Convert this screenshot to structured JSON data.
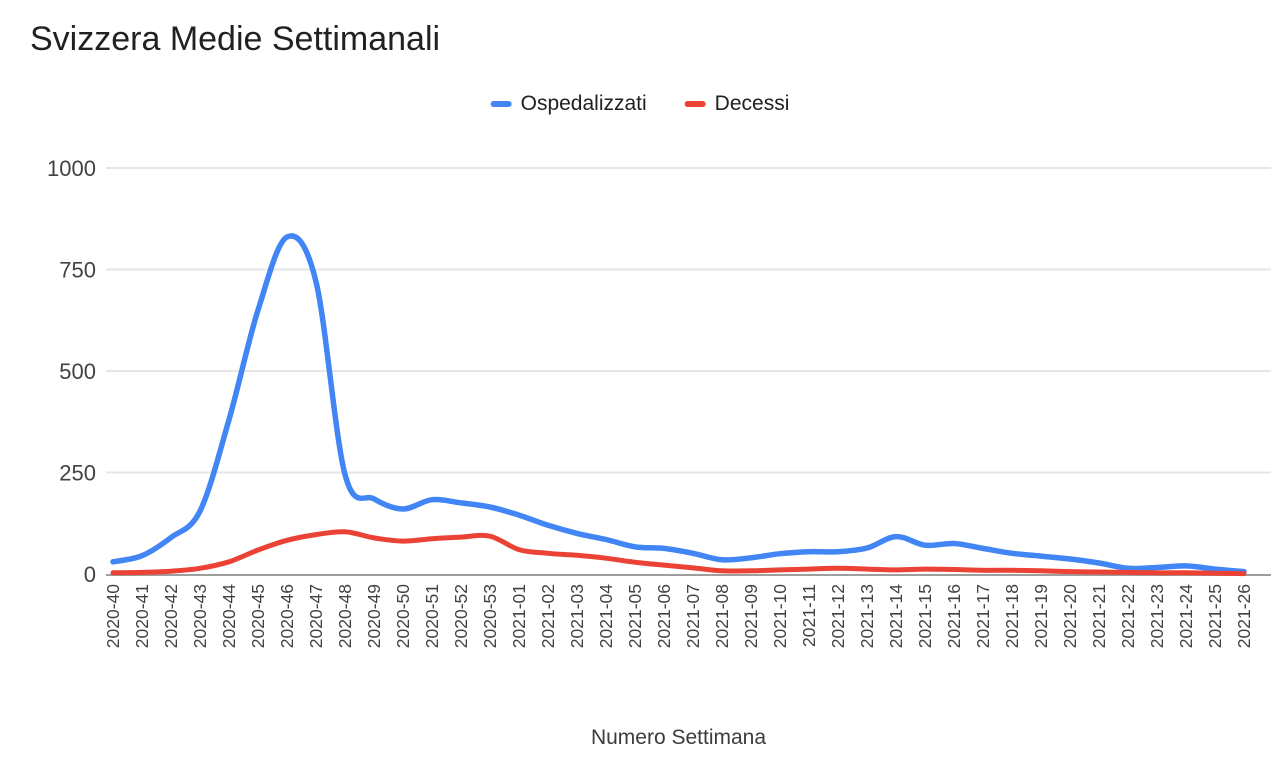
{
  "title": "Svizzera Medie Settimanali",
  "x_axis_title": "Numero Settimana",
  "colors": {
    "series_blue": "#4285f4",
    "series_red": "#ea4335",
    "gridline": "#e6e6e6",
    "zero_axis": "#9e9e9e",
    "tick_text": "#424242",
    "title_text": "#212121",
    "background": "#ffffff"
  },
  "chart_data": {
    "type": "line",
    "title": "Svizzera Medie Settimanali",
    "xlabel": "Numero Settimana",
    "ylabel": "",
    "ylim": [
      0,
      1000
    ],
    "yticks": [
      0,
      250,
      500,
      750,
      1000
    ],
    "grid": true,
    "legend_position": "top",
    "smooth": true,
    "x_tick_rotation": 90,
    "categories": [
      "2020-40",
      "2020-41",
      "2020-42",
      "2020-43",
      "2020-44",
      "2020-45",
      "2020-46",
      "2020-47",
      "2020-48",
      "2020-49",
      "2020-50",
      "2020-51",
      "2020-52",
      "2020-53",
      "2021-01",
      "2021-02",
      "2021-03",
      "2021-04",
      "2021-05",
      "2021-06",
      "2021-07",
      "2021-08",
      "2021-09",
      "2021-10",
      "2021-11",
      "2021-12",
      "2021-13",
      "2021-14",
      "2021-15",
      "2021-16",
      "2021-17",
      "2021-18",
      "2021-19",
      "2021-20",
      "2021-21",
      "2021-22",
      "2021-23",
      "2021-24",
      "2021-25",
      "2021-26"
    ],
    "series": [
      {
        "name": "Ospedalizzati",
        "color": "#4285f4",
        "values": [
          30,
          45,
          90,
          155,
          380,
          650,
          830,
          720,
          245,
          185,
          160,
          183,
          175,
          165,
          145,
          120,
          100,
          85,
          67,
          63,
          51,
          35,
          40,
          50,
          55,
          55,
          64,
          92,
          71,
          75,
          63,
          51,
          44,
          37,
          27,
          14,
          16,
          20,
          12,
          6
        ]
      },
      {
        "name": "Decessi",
        "color": "#ea4335",
        "values": [
          3,
          4,
          7,
          14,
          30,
          59,
          83,
          97,
          104,
          89,
          81,
          87,
          91,
          93,
          60,
          51,
          46,
          39,
          29,
          22,
          15,
          8,
          8,
          10,
          12,
          14,
          12,
          10,
          12,
          11,
          9,
          9,
          8,
          6,
          5,
          4,
          3,
          3,
          2,
          1
        ]
      }
    ]
  }
}
